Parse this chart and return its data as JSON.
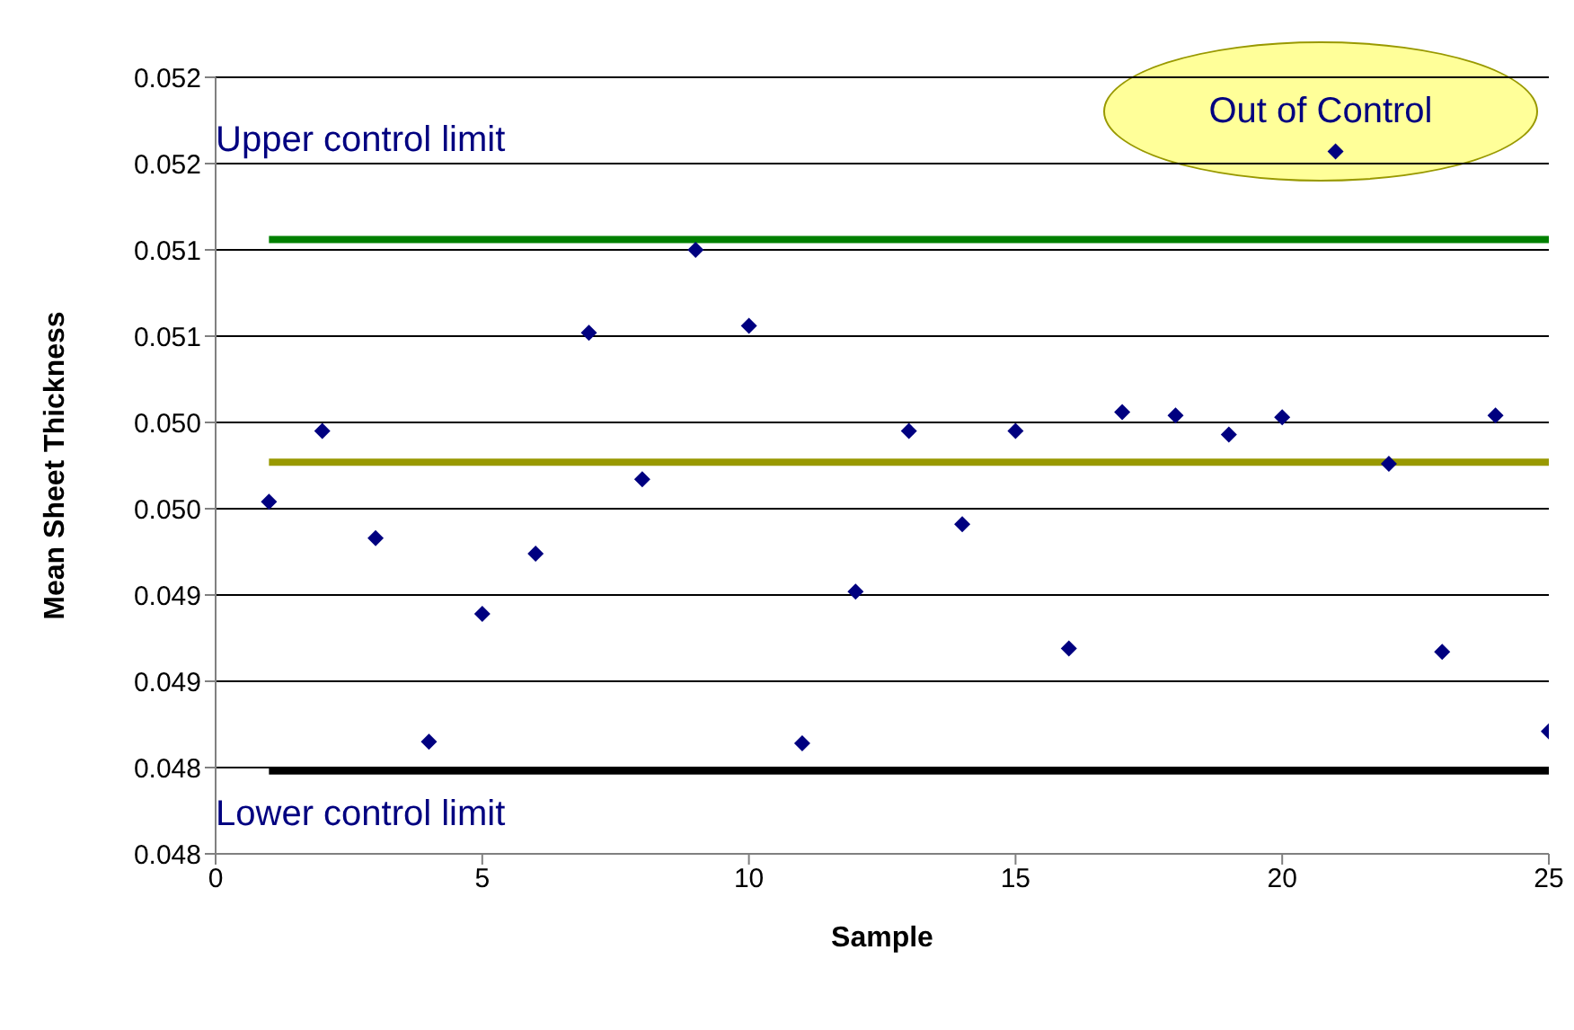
{
  "chart_data": {
    "type": "scatter",
    "xlabel": "Sample",
    "ylabel": "Mean Sheet Thickness",
    "x": [
      1,
      2,
      3,
      4,
      5,
      6,
      7,
      8,
      9,
      10,
      11,
      12,
      13,
      14,
      15,
      16,
      17,
      18,
      19,
      20,
      21,
      22,
      23,
      24,
      25
    ],
    "series": [
      {
        "marker": "diamond",
        "color": "#000080",
        "values": [
          0.04954,
          0.04995,
          0.04933,
          0.04815,
          0.04889,
          0.04924,
          0.05052,
          0.04967,
          0.051,
          0.05056,
          0.04814,
          0.04902,
          0.04995,
          0.04941,
          0.04995,
          0.04869,
          0.05006,
          0.05004,
          0.04993,
          0.05003,
          0.05157,
          0.04976,
          0.04867,
          0.05004,
          0.04821
        ]
      },
      {
        "type": "line",
        "marker": "none",
        "color": "#008000",
        "values": [
          0.05106,
          0.05106,
          0.05106,
          0.05106,
          0.05106,
          0.05106,
          0.05106,
          0.05106,
          0.05106,
          0.05106,
          0.05106,
          0.05106,
          0.05106,
          0.05106,
          0.05106,
          0.05106,
          0.05106,
          0.05106,
          0.05106,
          0.05106,
          0.05106,
          0.05106,
          0.05106,
          0.05106,
          0.05106
        ]
      },
      {
        "type": "line",
        "marker": "none",
        "color": "#999900",
        "values": [
          0.04977,
          0.04977,
          0.04977,
          0.04977,
          0.04977,
          0.04977,
          0.04977,
          0.04977,
          0.04977,
          0.04977,
          0.04977,
          0.04977,
          0.04977,
          0.04977,
          0.04977,
          0.04977,
          0.04977,
          0.04977,
          0.04977,
          0.04977,
          0.04977,
          0.04977,
          0.04977,
          0.04977,
          0.04977
        ]
      },
      {
        "type": "line",
        "marker": "none",
        "color": "#000000",
        "values": [
          0.04798,
          0.04798,
          0.04798,
          0.04798,
          0.04798,
          0.04798,
          0.04798,
          0.04798,
          0.04798,
          0.04798,
          0.04798,
          0.04798,
          0.04798,
          0.04798,
          0.04798,
          0.04798,
          0.04798,
          0.04798,
          0.04798,
          0.04798,
          0.04798,
          0.04798,
          0.04798,
          0.04798,
          0.04798
        ]
      }
    ],
    "line_style": "solid",
    "grid": "y",
    "legend": false,
    "xlim": [
      0,
      25
    ],
    "xticks": [
      0,
      5,
      10,
      15,
      20,
      25
    ],
    "ylim": [
      0.0475,
      0.052
    ],
    "yticks": [
      {
        "value": 0.0475,
        "label": "0.048"
      },
      {
        "value": 0.048,
        "label": "0.048"
      },
      {
        "value": 0.0485,
        "label": "0.049"
      },
      {
        "value": 0.049,
        "label": "0.049"
      },
      {
        "value": 0.0495,
        "label": "0.050"
      },
      {
        "value": 0.05,
        "label": "0.050"
      },
      {
        "value": 0.0505,
        "label": "0.051"
      },
      {
        "value": 0.051,
        "label": "0.051"
      },
      {
        "value": 0.0515,
        "label": "0.052"
      },
      {
        "value": 0.052,
        "label": "0.052"
      }
    ],
    "annotations": [
      "Upper control limit",
      "Lower control limit",
      "Out of Control"
    ]
  }
}
